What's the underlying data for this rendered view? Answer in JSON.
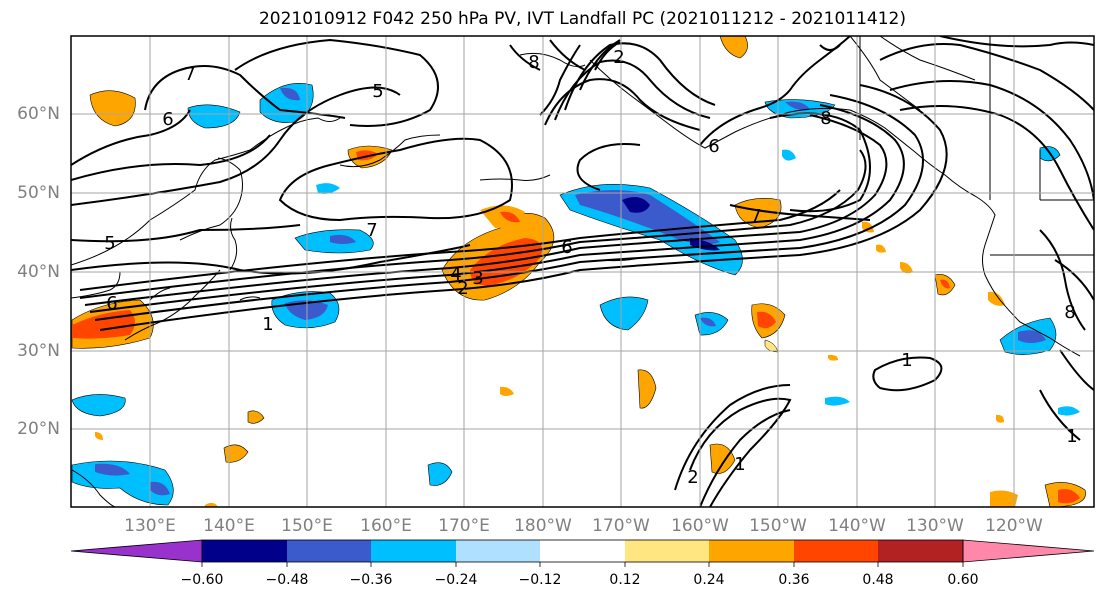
{
  "title": "2021010912 F042 250 hPa PV, IVT Landfall PC (2021011212 - 2021011412)",
  "map": {
    "lat_labels": [
      "60°N",
      "50°N",
      "40°N",
      "30°N",
      "20°N"
    ],
    "lon_labels": [
      "130°E",
      "140°E",
      "150°E",
      "160°E",
      "170°E",
      "180°W",
      "170°W",
      "160°W",
      "150°W",
      "140°W",
      "130°W",
      "120°W"
    ],
    "contour_labels": [
      "7",
      "6",
      "5",
      "8",
      "2",
      "6",
      "8",
      "7",
      "7",
      "5",
      "6",
      "4",
      "3",
      "2",
      "1",
      "6",
      "8",
      "1",
      "2",
      "1",
      "1"
    ]
  },
  "colorbar": {
    "ticks": [
      "−0.60",
      "−0.48",
      "−0.36",
      "−0.24",
      "−0.12",
      "0.12",
      "0.24",
      "0.36",
      "0.48",
      "0.60"
    ],
    "colors": [
      "#9932cc",
      "#00008b",
      "#3b5bcc",
      "#00bfff",
      "#b0e0ff",
      "#ffffff",
      "#ffe680",
      "#ffa500",
      "#ff4500",
      "#b22222",
      "#ff88aa"
    ]
  },
  "colors": {
    "grid": "#a6a6a6",
    "contour": "#000000",
    "coast": "#000000"
  }
}
